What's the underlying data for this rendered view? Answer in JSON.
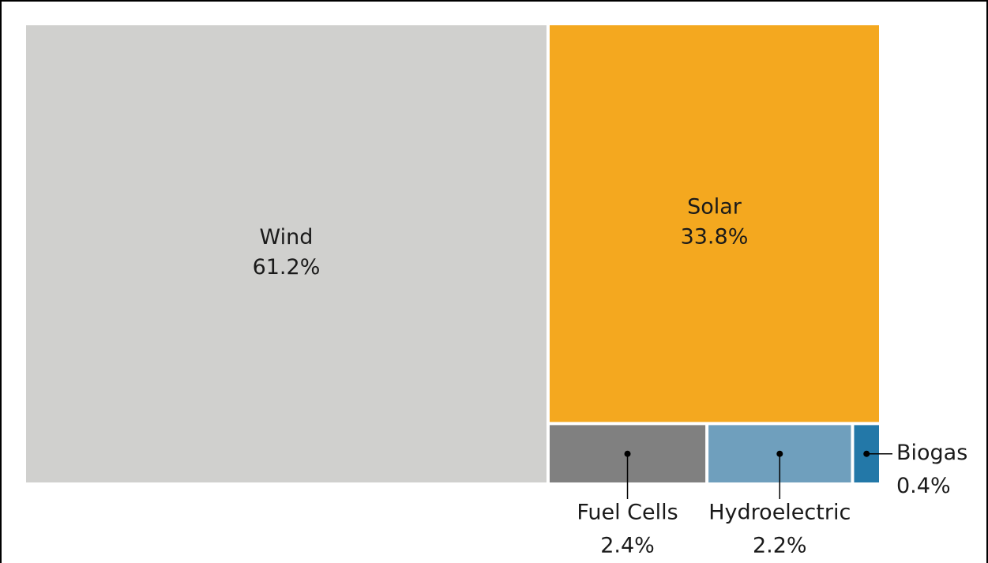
{
  "chart_data": {
    "type": "treemap",
    "categories": [
      "Wind",
      "Solar",
      "Fuel Cells",
      "Hydroelectric",
      "Biogas"
    ],
    "values": [
      61.2,
      33.8,
      2.4,
      2.2,
      0.4
    ],
    "value_labels": [
      "61.2%",
      "33.8%",
      "2.4%",
      "2.2%",
      "0.4%"
    ],
    "colors": [
      "#d0d0ce",
      "#f4a81f",
      "#808080",
      "#6f9fbd",
      "#2378a8"
    ]
  }
}
